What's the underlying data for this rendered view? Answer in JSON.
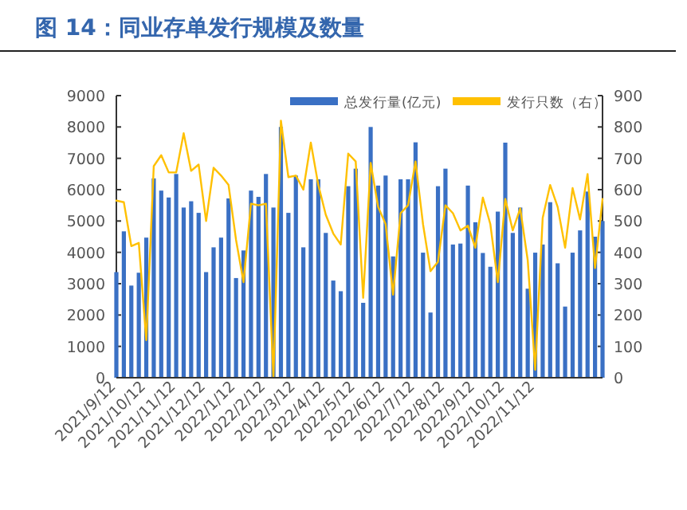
{
  "chart_data": {
    "type": "bar",
    "title": "图 14：同业存单发行规模及数量",
    "categories": [
      "2021/9/12",
      null,
      null,
      null,
      "2021/10/12",
      null,
      null,
      null,
      "2021/11/12",
      null,
      null,
      null,
      "2021/12/12",
      null,
      null,
      null,
      "2022/1/12",
      null,
      null,
      null,
      "2022/2/12",
      null,
      null,
      null,
      "2022/3/12",
      null,
      null,
      null,
      "2022/4/12",
      null,
      null,
      null,
      "2022/5/12",
      null,
      null,
      null,
      "2022/6/12",
      null,
      null,
      null,
      "2022/7/12",
      null,
      null,
      null,
      "2022/8/12",
      null,
      null,
      null,
      "2022/9/12",
      null,
      null,
      null,
      "2022/10/12",
      null,
      null,
      null,
      "2022/11/12",
      null,
      null,
      null,
      null,
      null,
      null,
      null,
      null,
      null
    ],
    "series": [
      {
        "name": "总发行量(亿元)",
        "color": "#3a70c4",
        "values": [
          3370,
          4670,
          2940,
          3350,
          4470,
          6360,
          5970,
          5750,
          6500,
          5430,
          5630,
          5260,
          3370,
          4160,
          4470,
          5720,
          3180,
          4060,
          5970,
          5770,
          6500,
          5430,
          8000,
          5260,
          6450,
          4160,
          6330,
          6330,
          4620,
          3100,
          2760,
          6110,
          6670,
          2390,
          8000,
          6130,
          6450,
          3870,
          6330,
          6330,
          7510,
          3990,
          2080,
          6110,
          6670,
          4250,
          4280,
          6130,
          4960,
          3980,
          3540,
          5300,
          7500,
          4620,
          5430,
          2840,
          3990,
          4250,
          5600,
          3650,
          2270,
          3990,
          4700,
          5940,
          4500,
          5000
        ]
      },
      {
        "name": "发行只数（右）",
        "type": "line",
        "axis": "y2",
        "color": "#ffc000",
        "values": [
          565,
          560,
          420,
          430,
          120,
          675,
          710,
          655,
          655,
          780,
          660,
          680,
          500,
          670,
          645,
          615,
          440,
          305,
          555,
          550,
          555,
          0,
          820,
          640,
          645,
          600,
          750,
          615,
          520,
          460,
          425,
          715,
          690,
          255,
          685,
          545,
          490,
          265,
          525,
          550,
          690,
          490,
          340,
          370,
          550,
          525,
          470,
          485,
          415,
          575,
          490,
          305,
          570,
          470,
          540,
          375,
          25,
          510,
          615,
          545,
          415,
          605,
          505,
          650,
          350,
          570
        ]
      }
    ],
    "ylim": [
      0,
      9000
    ],
    "yticks": [
      0,
      1000,
      2000,
      3000,
      4000,
      5000,
      6000,
      7000,
      8000,
      9000
    ],
    "y2lim": [
      0,
      900
    ],
    "y2ticks": [
      0,
      100,
      200,
      300,
      400,
      500,
      600,
      700,
      800,
      900
    ],
    "legend": "top"
  }
}
